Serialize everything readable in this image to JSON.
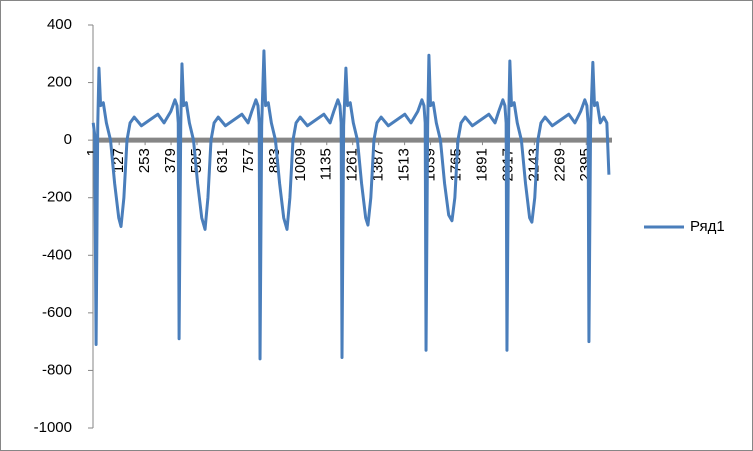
{
  "chart_data": {
    "type": "line",
    "x": [
      1,
      8,
      15,
      23,
      29,
      37,
      50,
      65,
      85,
      105,
      125,
      136,
      150,
      165,
      180,
      200,
      235,
      275,
      315,
      345,
      378,
      398,
      408,
      414,
      418,
      426,
      432,
      440,
      453,
      468,
      488,
      508,
      528,
      544,
      558,
      573,
      588,
      608,
      643,
      683,
      723,
      753,
      771,
      791,
      801,
      807,
      811,
      819,
      830,
      838,
      851,
      866,
      886,
      906,
      926,
      942,
      956,
      971,
      986,
      1006,
      1041,
      1081,
      1121,
      1151,
      1169,
      1189,
      1199,
      1205,
      1209,
      1217,
      1228,
      1236,
      1249,
      1264,
      1284,
      1304,
      1324,
      1335,
      1349,
      1364,
      1379,
      1399,
      1434,
      1474,
      1514,
      1544,
      1577,
      1597,
      1607,
      1613,
      1617,
      1625,
      1631,
      1639,
      1652,
      1667,
      1687,
      1707,
      1727,
      1743,
      1757,
      1772,
      1787,
      1807,
      1842,
      1882,
      1922,
      1952,
      1970,
      1990,
      2000,
      2006,
      2010,
      2018,
      2024,
      2032,
      2045,
      2060,
      2080,
      2100,
      2120,
      2131,
      2145,
      2160,
      2175,
      2195,
      2230,
      2270,
      2310,
      2340,
      2368,
      2388,
      2398,
      2404,
      2408,
      2416,
      2427,
      2435,
      2448,
      2463,
      2480,
      2495,
      2505
    ],
    "series": [
      {
        "name": "Ряд1",
        "color": "#4a7ebb",
        "values": [
          60,
          20,
          -710,
          50,
          250,
          120,
          130,
          60,
          0,
          -150,
          -270,
          -300,
          -200,
          0,
          60,
          80,
          50,
          70,
          90,
          60,
          100,
          140,
          120,
          60,
          -690,
          50,
          265,
          120,
          130,
          60,
          0,
          -150,
          -270,
          -310,
          -200,
          0,
          60,
          80,
          50,
          70,
          90,
          60,
          100,
          140,
          120,
          60,
          -760,
          50,
          310,
          120,
          130,
          60,
          0,
          -150,
          -270,
          -310,
          -200,
          0,
          60,
          80,
          50,
          70,
          90,
          60,
          100,
          140,
          120,
          60,
          -755,
          50,
          250,
          120,
          130,
          60,
          0,
          -150,
          -270,
          -295,
          -200,
          0,
          60,
          80,
          50,
          70,
          90,
          60,
          100,
          140,
          120,
          60,
          -730,
          50,
          295,
          120,
          130,
          60,
          0,
          -150,
          -260,
          -280,
          -200,
          0,
          60,
          80,
          50,
          70,
          90,
          60,
          100,
          140,
          120,
          60,
          -730,
          50,
          275,
          120,
          130,
          60,
          0,
          -150,
          -270,
          -285,
          -200,
          0,
          60,
          80,
          50,
          70,
          90,
          60,
          100,
          140,
          120,
          60,
          -700,
          50,
          270,
          120,
          130,
          60,
          80,
          60,
          -120
        ]
      }
    ],
    "xlim": [
      0,
      2520
    ],
    "xticks": [
      1,
      127,
      253,
      379,
      505,
      631,
      757,
      883,
      1009,
      1135,
      1261,
      1387,
      1513,
      1639,
      1765,
      1891,
      2017,
      2143,
      2269,
      2395
    ],
    "ylim": [
      -1000,
      400
    ],
    "yticks": [
      -1000,
      -800,
      -600,
      -400,
      -200,
      0,
      200,
      400
    ],
    "legend": "right"
  }
}
